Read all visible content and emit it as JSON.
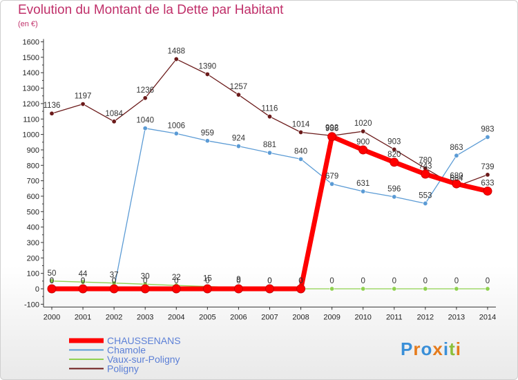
{
  "header": {
    "title": "Evolution du Montant de la Dette par Habitant",
    "subtitle": "(en €)"
  },
  "logo": {
    "text": "Proxiti"
  },
  "colors": {
    "title": "#c0306a",
    "CHAUSSENANS": "#ff0000",
    "Chamole": "#5b9bd5",
    "Vaux-sur-Poligny": "#8fd14f",
    "Poligny": "#6b1a1a"
  },
  "chart_data": {
    "type": "line",
    "title": "Evolution du Montant de la Dette par Habitant",
    "ylabel": "(en €)",
    "xlabel": "",
    "ylim": [
      -100,
      1600
    ],
    "yticks": [
      -100,
      0,
      100,
      200,
      300,
      400,
      500,
      600,
      700,
      800,
      900,
      1000,
      1100,
      1200,
      1300,
      1400,
      1500,
      1600
    ],
    "categories": [
      "2000",
      "2001",
      "2002",
      "2003",
      "2004",
      "2005",
      "2006",
      "2007",
      "2008",
      "2009",
      "2010",
      "2011",
      "2012",
      "2013",
      "2014"
    ],
    "grid": false,
    "legend_position": "bottom-left",
    "series": [
      {
        "name": "CHAUSSENANS",
        "values": [
          0,
          0,
          0,
          0,
          0,
          0,
          0,
          0,
          0,
          986,
          900,
          820,
          743,
          680,
          633
        ],
        "labels": [
          "0",
          "0",
          "0",
          "0",
          "0",
          "0",
          "0",
          "0",
          "0",
          "986",
          "900",
          "820",
          "743",
          "680",
          "633"
        ]
      },
      {
        "name": "Chamole",
        "values": [
          0,
          0,
          0,
          1040,
          1006,
          959,
          924,
          881,
          840,
          679,
          631,
          596,
          553,
          863,
          983
        ],
        "labels": [
          "0",
          "0",
          "0",
          "1040",
          "1006",
          "959",
          "924",
          "881",
          "840",
          "679",
          "631",
          "596",
          "553",
          "863",
          "983"
        ]
      },
      {
        "name": "Vaux-sur-Poligny",
        "values": [
          50,
          44,
          37,
          30,
          22,
          15,
          9,
          0,
          0,
          0,
          0,
          0,
          0,
          0,
          0
        ],
        "labels": [
          "50",
          "44",
          "37",
          "30",
          "22",
          "15",
          "9",
          "0",
          "0",
          "0",
          "0",
          "0",
          "0",
          "0",
          "0"
        ]
      },
      {
        "name": "Poligny",
        "values": [
          1136,
          1197,
          1084,
          1236,
          1488,
          1390,
          1257,
          1116,
          1014,
          992,
          1020,
          903,
          780,
          664,
          739
        ],
        "labels": [
          "1136",
          "1197",
          "1084",
          "1236",
          "1488",
          "1390",
          "1257",
          "1116",
          "1014",
          "992",
          "1020",
          "903",
          "780",
          "664",
          "739"
        ]
      }
    ]
  }
}
